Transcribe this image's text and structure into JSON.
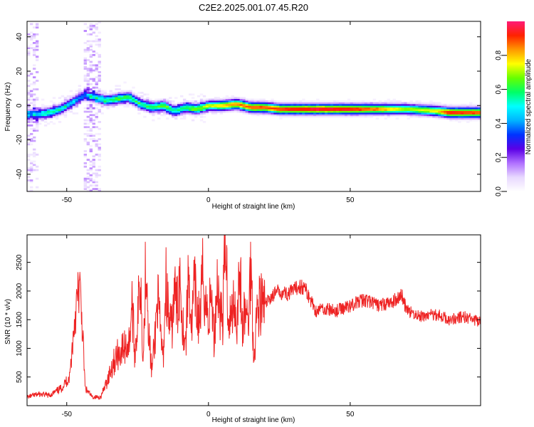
{
  "figure": {
    "title": "C2E2.2025.001.07.45.R20"
  },
  "colors": {
    "snr_line": "#ee2222",
    "colormap": [
      "#ffffff",
      "#e8d8ff",
      "#b070ff",
      "#5a00e6",
      "#0033ff",
      "#00b4ff",
      "#00ffff",
      "#00ff66",
      "#66ff00",
      "#ffff00",
      "#ff9900",
      "#ff2200",
      "#ff1a77"
    ]
  },
  "chart_data": [
    {
      "type": "heatmap",
      "xlabel": "Height of straight line (km)",
      "ylabel": "Frequency (Hz)",
      "xlim": [
        -64,
        96
      ],
      "ylim": [
        -50,
        49
      ],
      "xticks": [
        -50,
        0,
        50
      ],
      "yticks": [
        -40,
        -20,
        0,
        20,
        40
      ],
      "xtick_labels": [
        "-50",
        "0",
        "50"
      ],
      "ytick_labels": [
        "-40",
        "-20",
        "0",
        "20",
        "40"
      ],
      "colorbar": {
        "label": "Normalized spectral amplitude",
        "range": [
          0,
          1
        ],
        "ticks": [
          0.0,
          0.2,
          0.4,
          0.6,
          0.8
        ],
        "tick_labels": [
          "0.0",
          "0.2",
          "0.4",
          "0.6",
          "0.8"
        ]
      },
      "ridge": {
        "x": [
          -64,
          -60,
          -56,
          -52,
          -48,
          -44,
          -40,
          -36,
          -32,
          -28,
          -24,
          -20,
          -16,
          -12,
          -8,
          -4,
          0,
          5,
          10,
          15,
          20,
          25,
          30,
          40,
          50,
          60,
          70,
          80,
          85,
          96
        ],
        "frequency": [
          -5,
          -5,
          -4,
          -2,
          2,
          6,
          5,
          3,
          4,
          5,
          1,
          -1,
          0,
          -3,
          -1,
          -2,
          0,
          0,
          1,
          -1,
          -1,
          -2,
          -2,
          -2,
          -2,
          -2,
          -2,
          -3,
          -4,
          -4
        ],
        "amplitude": [
          0.35,
          0.45,
          0.55,
          0.5,
          0.45,
          0.35,
          0.5,
          0.55,
          0.6,
          0.6,
          0.55,
          0.6,
          0.65,
          0.55,
          0.6,
          0.65,
          0.7,
          0.8,
          0.85,
          0.9,
          0.9,
          0.92,
          0.95,
          0.97,
          0.95,
          0.85,
          0.7,
          0.75,
          0.95,
          0.9
        ]
      },
      "bands": [
        {
          "x_range": [
            -64,
            -60
          ],
          "amplitude": 0.15
        },
        {
          "x_range": [
            -44,
            -38
          ],
          "amplitude": 0.15
        }
      ]
    },
    {
      "type": "line",
      "xlabel": "Height of straight line (km)",
      "ylabel": "SNR (10 * v/v)",
      "xlim": [
        -64,
        96
      ],
      "ylim": [
        0,
        2980
      ],
      "xticks": [
        -50,
        0,
        50
      ],
      "yticks": [
        500,
        1000,
        1500,
        2000,
        2500
      ],
      "xtick_labels": [
        "-50",
        "0",
        "50"
      ],
      "ytick_labels": [
        "500",
        "1000",
        "1500",
        "2000",
        "2500"
      ],
      "series": [
        {
          "x": [
            -64,
            -60,
            -56,
            -52,
            -49,
            -47,
            -45.5,
            -44.5,
            -43.5,
            -41,
            -38,
            -36,
            -34,
            -32,
            -30,
            -28,
            -27,
            -26,
            -25,
            -24,
            -23,
            -22,
            -21,
            -20,
            -19,
            -18,
            -17,
            -16,
            -15,
            -14,
            -13,
            -12,
            -11,
            -10,
            -9,
            -8,
            -7,
            -6,
            -5,
            -4,
            -3,
            -2,
            -1,
            0,
            1,
            2,
            3,
            4,
            5,
            6,
            7,
            8,
            9,
            10,
            11,
            12,
            13,
            14,
            15,
            16,
            17,
            18,
            20,
            22,
            25,
            28,
            30,
            32,
            34,
            36,
            38,
            40,
            45,
            50,
            55,
            60,
            65,
            68,
            70,
            75,
            80,
            85,
            90,
            96
          ],
          "values": [
            150,
            200,
            180,
            300,
            500,
            1600,
            2100,
            1400,
            300,
            150,
            150,
            400,
            700,
            900,
            1000,
            1100,
            1800,
            900,
            1500,
            2300,
            800,
            2750,
            1200,
            600,
            1100,
            1900,
            1300,
            800,
            2200,
            1500,
            1300,
            2000,
            1700,
            2300,
            1400,
            1100,
            2400,
            1300,
            2100,
            1600,
            1500,
            2300,
            1800,
            1500,
            2000,
            1100,
            2200,
            1700,
            1500,
            2950,
            1600,
            1500,
            1950,
            1400,
            2500,
            1300,
            1700,
            1400,
            2550,
            800,
            1600,
            1800,
            1750,
            1900,
            2000,
            1950,
            2000,
            2100,
            2050,
            1850,
            1650,
            1700,
            1650,
            1750,
            1850,
            1750,
            1800,
            1950,
            1650,
            1550,
            1600,
            1500,
            1550,
            1450
          ]
        }
      ]
    }
  ]
}
